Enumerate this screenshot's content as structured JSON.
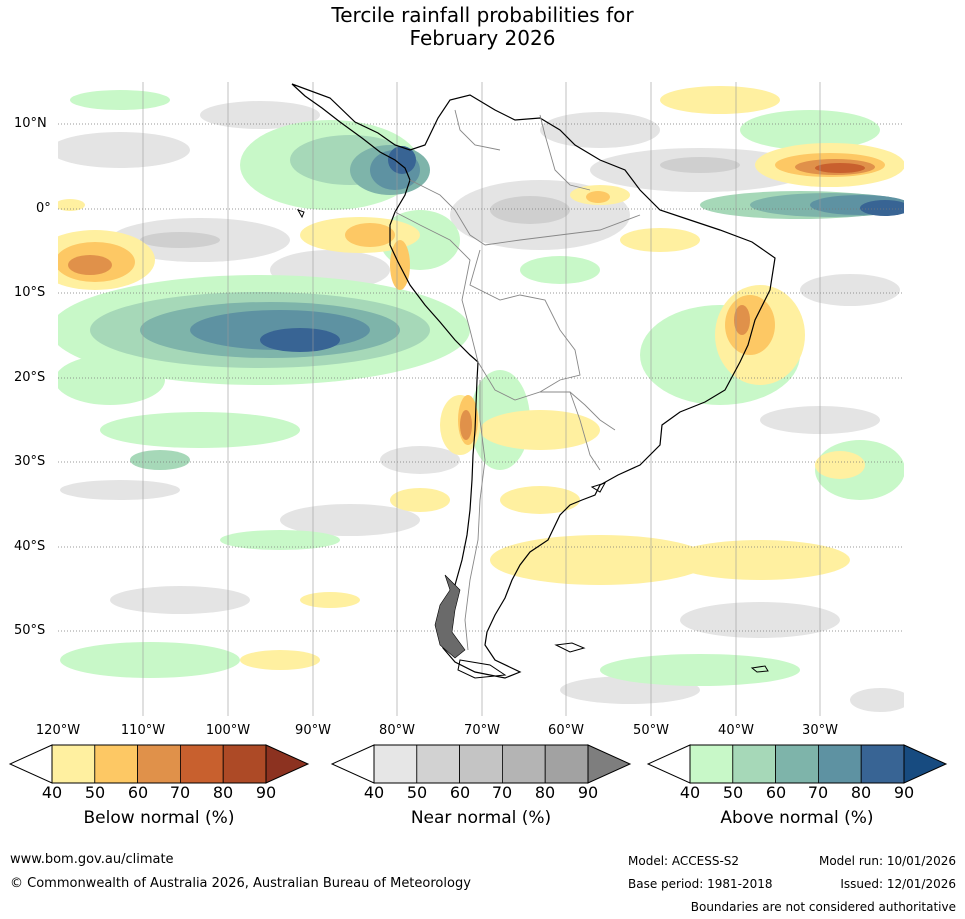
{
  "title_line1": "Tercile rainfall probabilities for",
  "title_line2": "February 2026",
  "lat_labels": [
    "10°N",
    "0°",
    "10°S",
    "20°S",
    "30°S",
    "40°S",
    "50°S"
  ],
  "lon_labels": [
    "120°W",
    "110°W",
    "100°W",
    "90°W",
    "80°W",
    "70°W",
    "60°W",
    "50°W",
    "40°W",
    "30°W"
  ],
  "colorbars": {
    "below": {
      "title": "Below normal (%)",
      "ticks": [
        "40",
        "50",
        "60",
        "70",
        "80",
        "90"
      ],
      "colors": [
        "#fff0a0",
        "#fdc864",
        "#e0914a",
        "#c8602e",
        "#ad4a26",
        "#8c3220"
      ]
    },
    "near": {
      "title": "Near normal (%)",
      "ticks": [
        "40",
        "50",
        "60",
        "70",
        "80",
        "90"
      ],
      "colors": [
        "#e6e6e6",
        "#d2d2d2",
        "#c4c4c4",
        "#b4b4b4",
        "#a2a2a2",
        "#7e7e7e"
      ]
    },
    "above": {
      "title": "Above normal (%)",
      "ticks": [
        "40",
        "50",
        "60",
        "70",
        "80",
        "90"
      ],
      "colors": [
        "#c8f8c8",
        "#a6d8b8",
        "#7eb4aa",
        "#5e92a2",
        "#386494",
        "#174b80"
      ]
    }
  },
  "footer": {
    "website": "www.bom.gov.au/climate",
    "copyright": "© Commonwealth of Australia 2026, Australian Bureau of Meteorology",
    "model": "Model: ACCESS-S2",
    "model_run": "Model run: 10/01/2026",
    "base_period": "Base period: 1981-2018",
    "issued": "Issued: 12/01/2026",
    "disclaimer": "Boundaries are not considered authoritative"
  }
}
